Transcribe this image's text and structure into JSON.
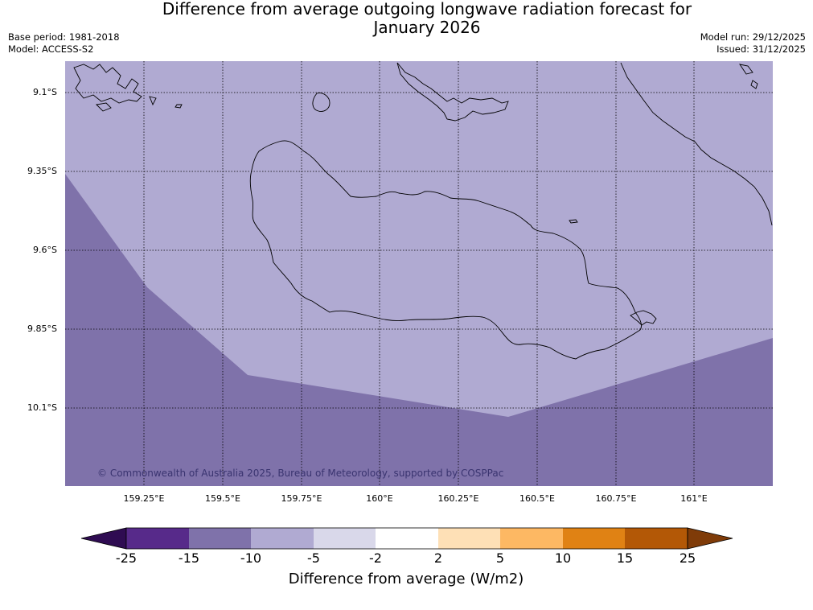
{
  "header": {
    "title_line1": "Difference from average outgoing longwave radiation forecast for",
    "title_line2": "January 2026",
    "base_period": "Base period: 1981-2018",
    "model": "Model: ACCESS-S2",
    "model_run": "Model run: 29/12/2025",
    "issued": "Issued: 31/12/2025"
  },
  "map": {
    "latitude_labels": [
      "9.1°S",
      "9.35°S",
      "9.6°S",
      "9.85°S",
      "10.1°S"
    ],
    "longitude_labels": [
      "159.25°E",
      "159.5°E",
      "159.75°E",
      "160°E",
      "160.25°E",
      "160.5°E",
      "160.75°E",
      "161°E"
    ],
    "fill_colors": {
      "-10 to -5": "#b0aad2",
      "-15 to -10": "#7f72aa"
    },
    "copyright": "© Commonwealth of Australia 2025, Bureau of Meteorology, supported by COSPPac"
  },
  "colorbar": {
    "title": "Difference from average (W/m2)",
    "ticks": [
      "-25",
      "-15",
      "-10",
      "-5",
      "-2",
      "2",
      "5",
      "10",
      "15",
      "25"
    ],
    "colors": [
      "#2f0c52",
      "#572a8a",
      "#7f72aa",
      "#b0aad2",
      "#d9d8ea",
      "#ffffff",
      "#fee0b6",
      "#fdb863",
      "#e08214",
      "#b35806",
      "#7f3b08"
    ]
  }
}
